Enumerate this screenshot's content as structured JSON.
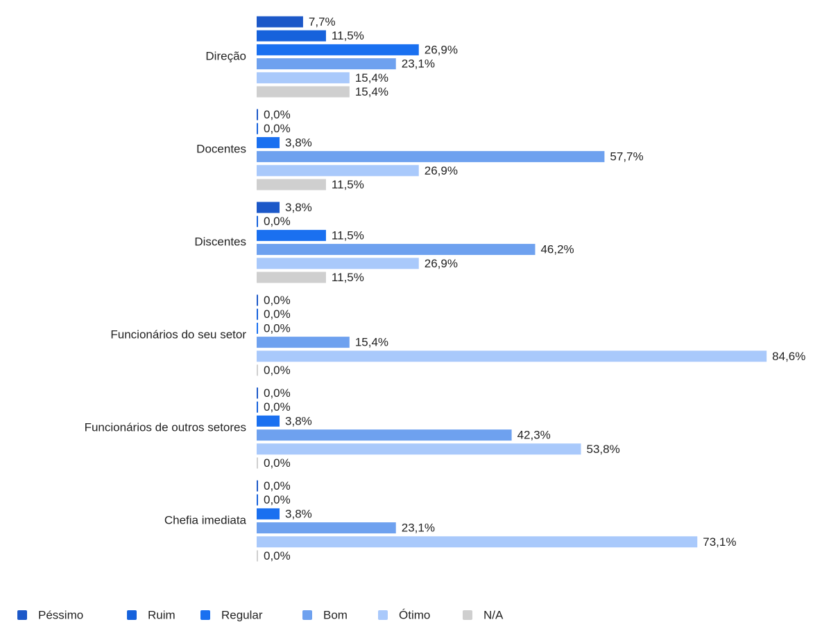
{
  "chart_data": {
    "type": "bar",
    "orientation": "horizontal",
    "categories": [
      "Direção",
      "Docentes",
      "Discentes",
      "Funcionários do seu setor",
      "Funcionários de outros setores",
      "Chefia imediata"
    ],
    "xlim": [
      0,
      100
    ],
    "legend": "bottom",
    "series": [
      {
        "name": "Péssimo",
        "color": "#1c58c8",
        "values": [
          7.7,
          0,
          3.8,
          0,
          0,
          0
        ],
        "value_labels": [
          "7,7%",
          "0,0%",
          "3,8%",
          "0,0%",
          "0,0%",
          "0,0%"
        ]
      },
      {
        "name": "Ruim",
        "color": "#1662dc",
        "values": [
          11.5,
          0,
          0,
          0,
          0,
          0
        ],
        "value_labels": [
          "11,5%",
          "0,0%",
          "0,0%",
          "0,0%",
          "0,0%",
          "0,0%"
        ]
      },
      {
        "name": "Regular",
        "color": "#1a70f0",
        "values": [
          26.9,
          3.8,
          11.5,
          0,
          3.8,
          3.8
        ],
        "value_labels": [
          "26,9%",
          "3,8%",
          "11,5%",
          "0,0%",
          "3,8%",
          "3,8%"
        ]
      },
      {
        "name": "Bom",
        "color": "#6ea1ef",
        "values": [
          23.1,
          57.7,
          46.2,
          15.4,
          42.3,
          23.1
        ],
        "value_labels": [
          "23,1%",
          "57,7%",
          "46,2%",
          "15,4%",
          "42,3%",
          "23,1%"
        ]
      },
      {
        "name": "Ótimo",
        "color": "#a9c9fb",
        "values": [
          15.4,
          26.9,
          26.9,
          84.6,
          53.8,
          73.1
        ],
        "value_labels": [
          "15,4%",
          "26,9%",
          "26,9%",
          "84,6%",
          "53,8%",
          "73,1%"
        ]
      },
      {
        "name": "N/A",
        "color": "#cfcfcf",
        "values": [
          15.4,
          11.5,
          11.5,
          0,
          0,
          0
        ],
        "value_labels": [
          "15,4%",
          "11,5%",
          "11,5%",
          "0,0%",
          "0,0%",
          "0,0%"
        ]
      }
    ]
  }
}
